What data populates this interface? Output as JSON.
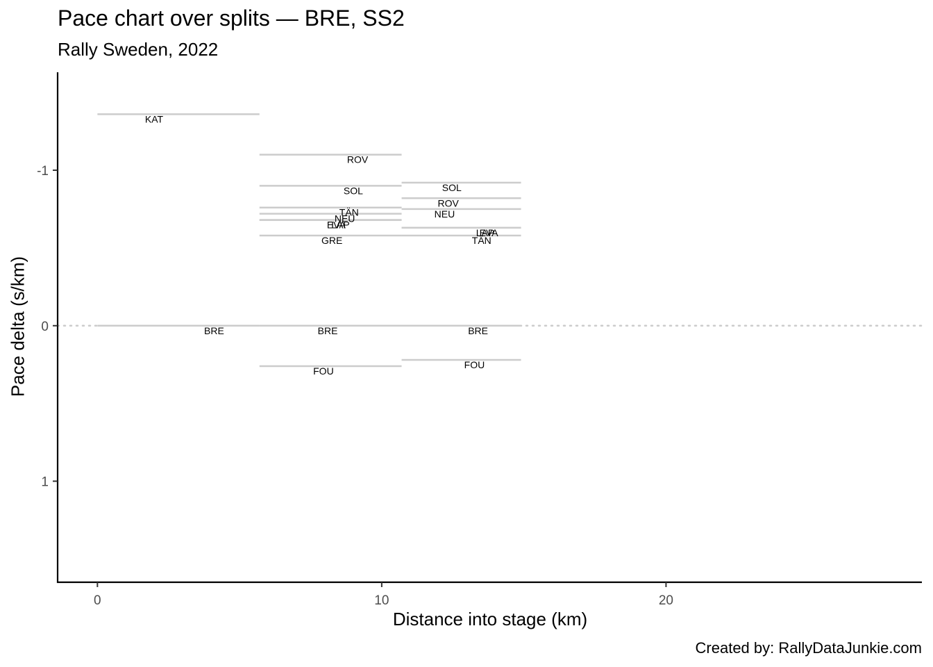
{
  "chart_data": {
    "type": "segment",
    "title": "Pace chart over splits — BRE, SS2",
    "subtitle": "Rally Sweden, 2022",
    "xlabel": "Distance into stage (km)",
    "ylabel": "Pace delta (s/km)",
    "caption": "Created by: RallyDataJunkie.com",
    "xlim": [
      -1.4,
      29
    ],
    "ylim": [
      -1.63,
      1.65
    ],
    "y_reversed": true,
    "x_ticks": [
      0,
      10,
      20
    ],
    "y_ticks": [
      -1,
      0,
      1
    ],
    "y_tick_labels": [
      "-1",
      "0",
      "1"
    ],
    "reference_line": {
      "y": 0,
      "style": "dotted"
    },
    "segments": [
      {
        "driver": "KAT",
        "x_start": 0,
        "x_end": 5.7,
        "pace": -1.36
      },
      {
        "driver": "BRE",
        "x_start": 0,
        "x_end": 5.7,
        "pace": 0.0
      },
      {
        "driver": "ROV",
        "x_start": 5.7,
        "x_end": 10.7,
        "pace": -1.1
      },
      {
        "driver": "SOL",
        "x_start": 5.7,
        "x_end": 10.7,
        "pace": -0.9
      },
      {
        "driver": "TÄN",
        "x_start": 5.7,
        "x_end": 10.7,
        "pace": -0.76
      },
      {
        "driver": "NEU",
        "x_start": 5.7,
        "x_end": 10.7,
        "pace": -0.72
      },
      {
        "driver": "LAP",
        "x_start": 5.7,
        "x_end": 10.7,
        "pace": -0.68
      },
      {
        "driver": "EVA",
        "x_start": 5.7,
        "x_end": 10.7,
        "pace": -0.68
      },
      {
        "driver": "GRE",
        "x_start": 5.7,
        "x_end": 10.7,
        "pace": -0.58
      },
      {
        "driver": "BRE",
        "x_start": 5.7,
        "x_end": 10.7,
        "pace": 0.0
      },
      {
        "driver": "FOU",
        "x_start": 5.7,
        "x_end": 10.7,
        "pace": 0.26
      },
      {
        "driver": "SOL",
        "x_start": 10.7,
        "x_end": 14.9,
        "pace": -0.92
      },
      {
        "driver": "ROV",
        "x_start": 10.7,
        "x_end": 14.9,
        "pace": -0.82
      },
      {
        "driver": "NEU",
        "x_start": 10.7,
        "x_end": 14.9,
        "pace": -0.75
      },
      {
        "driver": "EVA",
        "x_start": 10.7,
        "x_end": 14.9,
        "pace": -0.63
      },
      {
        "driver": "LAP",
        "x_start": 10.7,
        "x_end": 14.9,
        "pace": -0.63
      },
      {
        "driver": "TÄN",
        "x_start": 10.7,
        "x_end": 14.9,
        "pace": -0.58
      },
      {
        "driver": "BRE",
        "x_start": 10.7,
        "x_end": 14.9,
        "pace": 0.0
      },
      {
        "driver": "FOU",
        "x_start": 10.7,
        "x_end": 14.9,
        "pace": 0.22
      }
    ],
    "segment_color": "#cccccc",
    "reference_color": "#cccccc",
    "axis_color": "#000000"
  }
}
